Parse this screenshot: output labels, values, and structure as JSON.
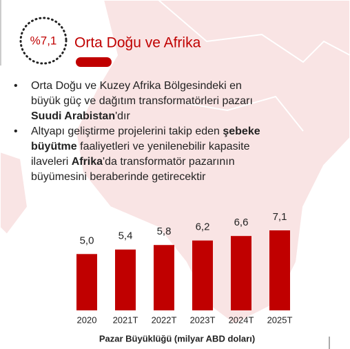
{
  "header": {
    "badge": "%7,1",
    "title": "Orta Doğu ve Afrika"
  },
  "bullets": [
    [
      {
        "text": "Orta Doğu ve Kuzey Afrika Bölgesindeki en",
        "bold": false
      },
      {
        "text": "büyük güç ve dağıtım transformatörleri pazarı",
        "bold": false
      },
      {
        "text": "Suudi Arabistan",
        "bold": true
      },
      {
        "text": "'dır",
        "bold": false
      }
    ],
    [
      {
        "text": "Altyapı geliştirme projelerini takip eden ",
        "bold": false
      },
      {
        "text": "şebeke",
        "bold": true
      },
      {
        "text": "büyütme",
        "bold": true
      },
      {
        "text": " faaliyetleri ve yenilenebilir kapasite",
        "bold": false
      },
      {
        "text": "ilaveleri ",
        "bold": false
      },
      {
        "text": "Afrika",
        "bold": true
      },
      {
        "text": "'da transformatör pazarının",
        "bold": false
      },
      {
        "text": "büyümesini beraberinde getirecektir",
        "bold": false
      }
    ]
  ],
  "chart_data": {
    "type": "bar",
    "title": "Pazar Büyüklüğü (milyar ABD doları)",
    "categories": [
      "2020",
      "2021T",
      "2022T",
      "2023T",
      "2024T",
      "2025T"
    ],
    "values": [
      5.0,
      5.4,
      5.8,
      6.2,
      6.6,
      7.1
    ],
    "value_labels": [
      "5,0",
      "5,4",
      "5,8",
      "6,2",
      "6,6",
      "7,1"
    ],
    "color": "#c00000"
  }
}
